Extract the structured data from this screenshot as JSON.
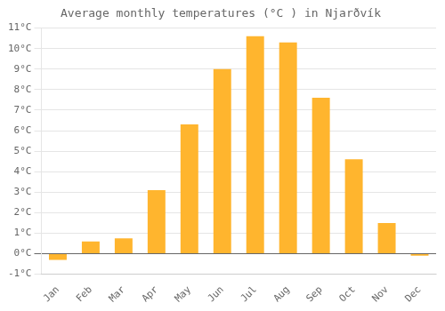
{
  "chart_data": {
    "type": "bar",
    "title": "Average monthly temperatures (°C ) in Njarðvík",
    "categories": [
      "Jan",
      "Feb",
      "Mar",
      "Apr",
      "May",
      "Jun",
      "Jul",
      "Aug",
      "Sep",
      "Oct",
      "Nov",
      "Dec"
    ],
    "values": [
      -0.3,
      0.6,
      0.75,
      3.1,
      6.3,
      9.0,
      10.6,
      10.3,
      7.6,
      4.6,
      1.5,
      -0.1
    ],
    "color": "#FFB52E",
    "ylim": [
      -1,
      11
    ],
    "yticks": [
      {
        "value": -1,
        "label": "-1°C"
      },
      {
        "value": 0,
        "label": "0°C"
      },
      {
        "value": 1,
        "label": "1°C"
      },
      {
        "value": 2,
        "label": "2°C"
      },
      {
        "value": 3,
        "label": "3°C"
      },
      {
        "value": 4,
        "label": "4°C"
      },
      {
        "value": 5,
        "label": "5°C"
      },
      {
        "value": 6,
        "label": "6°C"
      },
      {
        "value": 7,
        "label": "7°C"
      },
      {
        "value": 8,
        "label": "8°C"
      },
      {
        "value": 9,
        "label": "9°C"
      },
      {
        "value": 10,
        "label": "10°C"
      },
      {
        "value": 11,
        "label": "11°C"
      }
    ],
    "grid": true
  }
}
